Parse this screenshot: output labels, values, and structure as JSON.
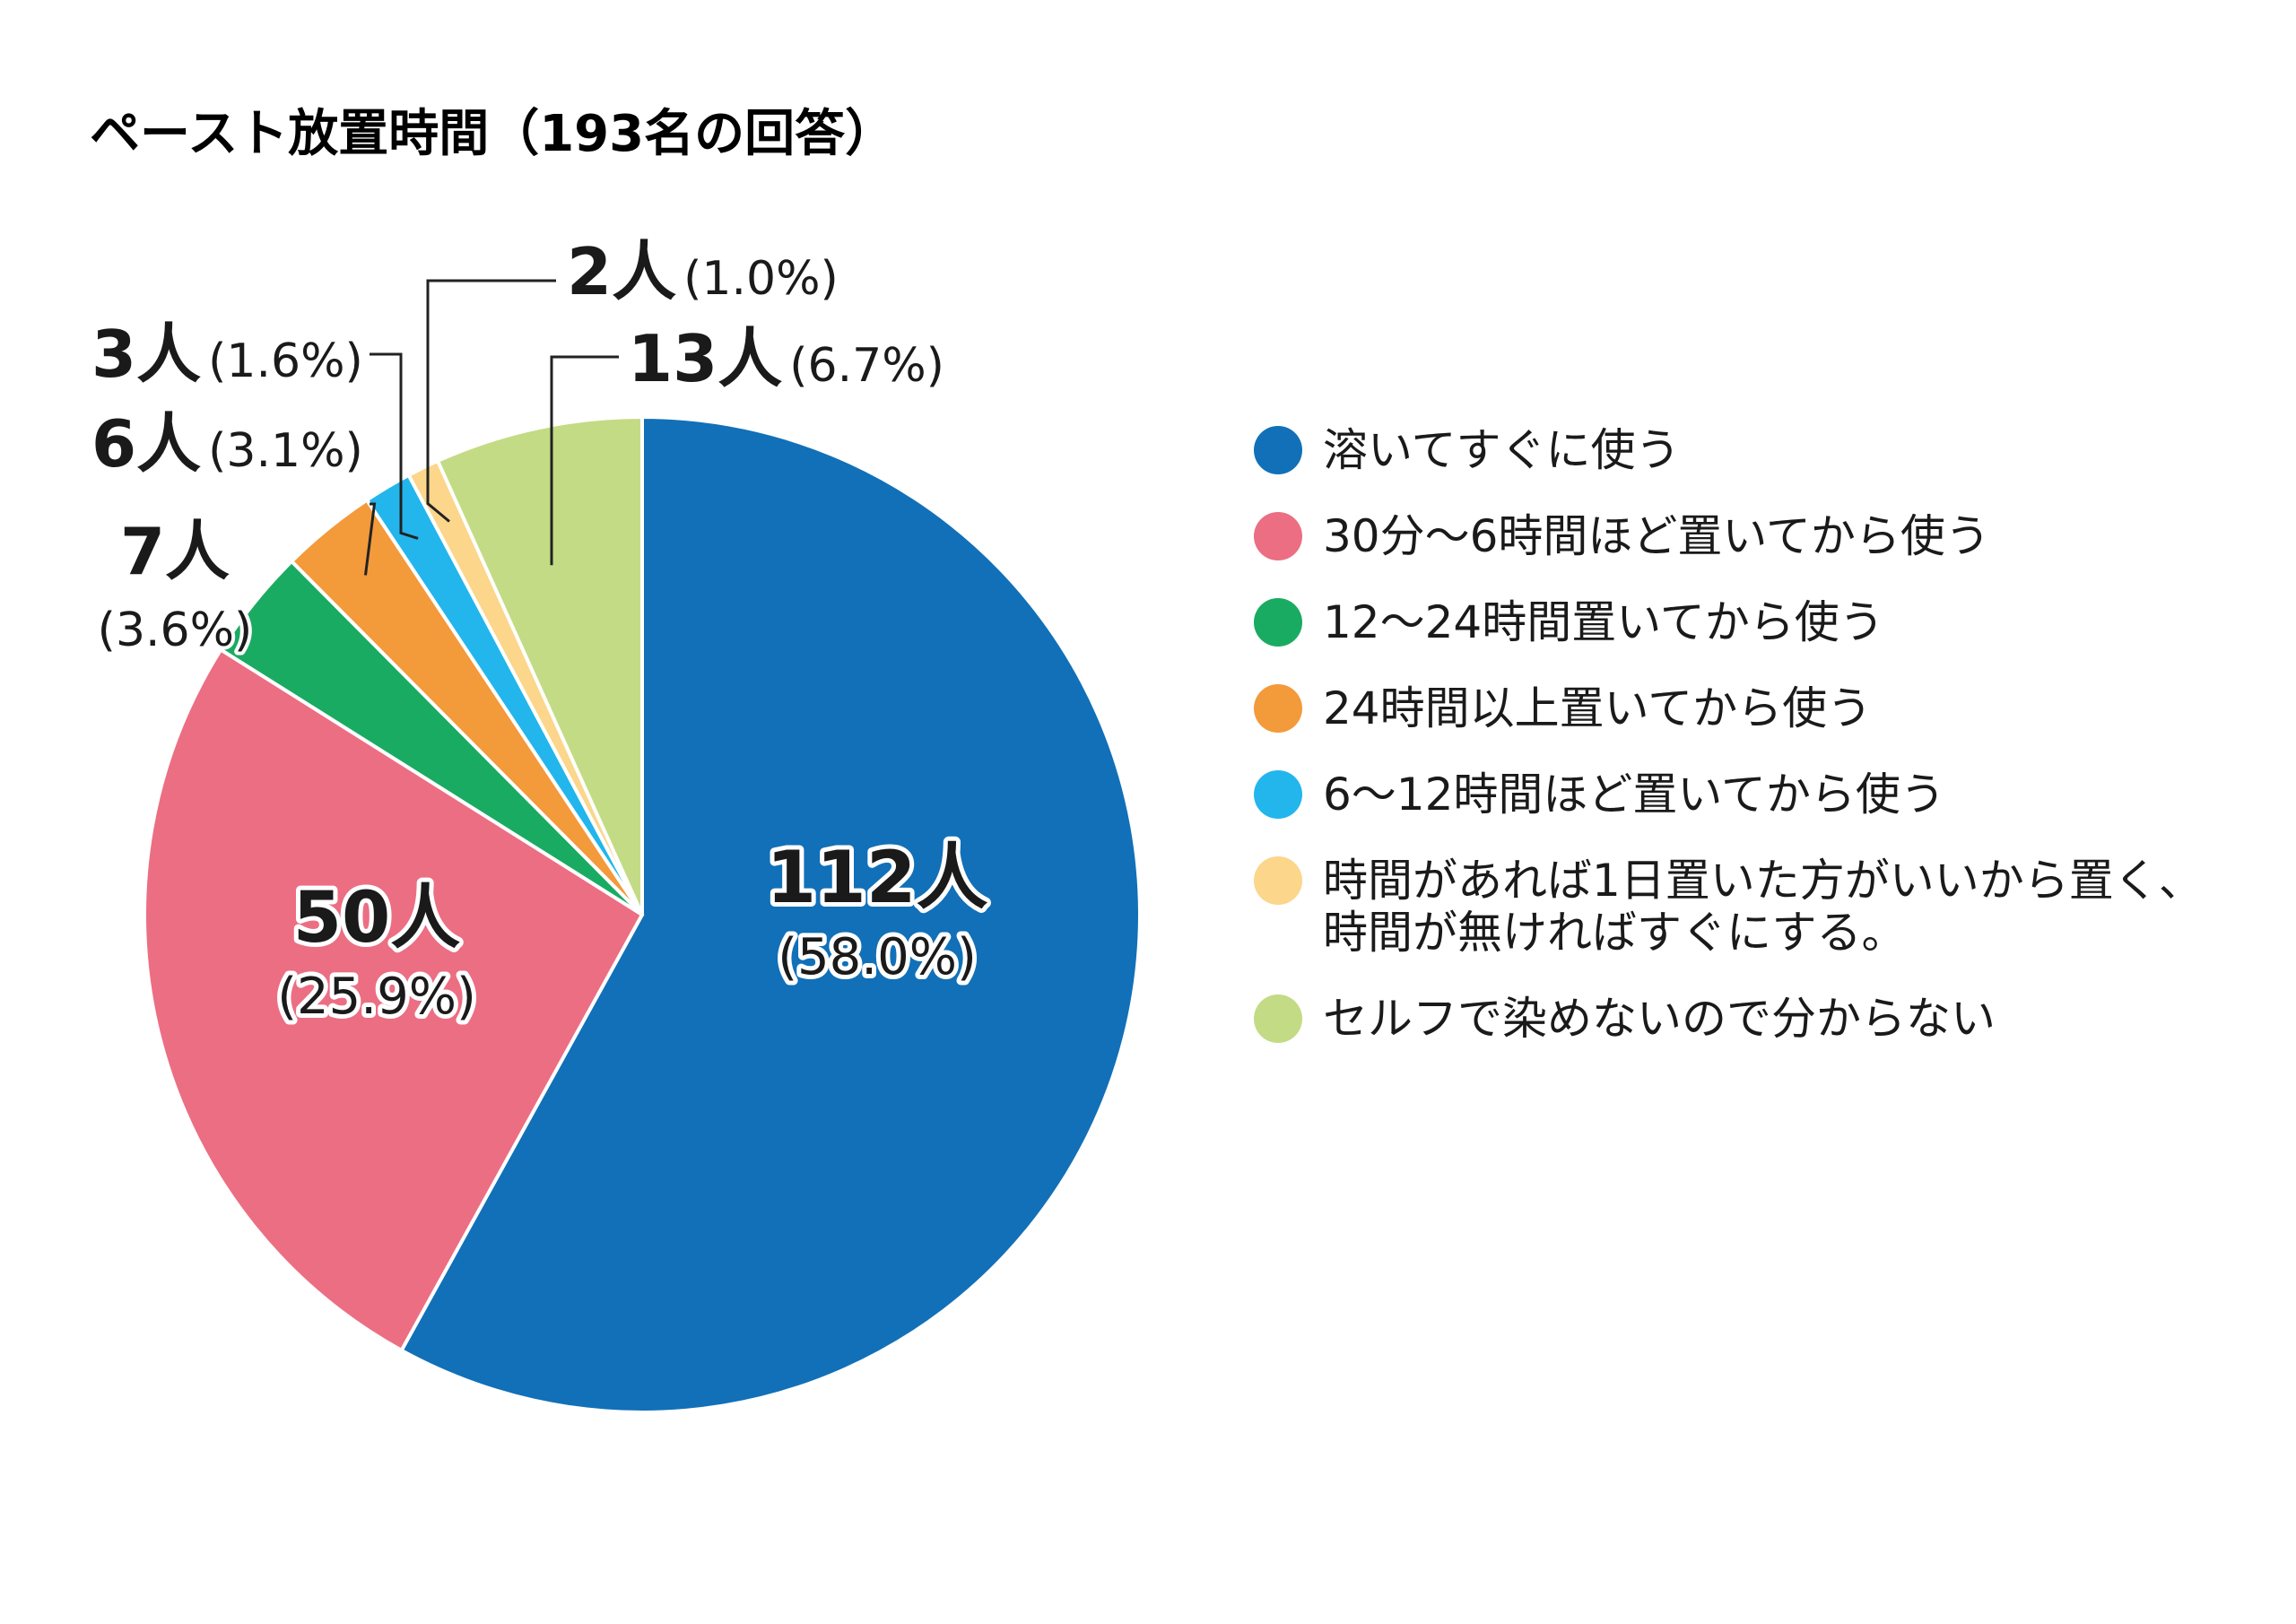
{
  "chart_data": {
    "type": "pie",
    "title": "ペースト放置時間（193名の回答）",
    "total": 193,
    "slices": [
      {
        "label": "溶いてすぐに使う",
        "value": 112,
        "count_label": "112人",
        "pct_label": "(58.0%)",
        "color": "#1170b8"
      },
      {
        "label": "30分〜6時間ほど置いてから使う",
        "value": 50,
        "count_label": "50人",
        "pct_label": "(25.9%)",
        "color": "#ec6e83"
      },
      {
        "label": "12〜24時間置いてから使う",
        "value": 7,
        "count_label": "7人",
        "pct_label": "(3.6%)",
        "color": "#1aab62"
      },
      {
        "label": "24時間以上置いてから使う",
        "value": 6,
        "count_label": "6人",
        "pct_label": "(3.1%)",
        "color": "#f39a3b"
      },
      {
        "label": "6〜12時間ほど置いてから使う",
        "value": 3,
        "count_label": "3人",
        "pct_label": "(1.6%)",
        "color": "#22b6ec"
      },
      {
        "label": "時間があれば1日置いた方がいいから置く、時間が無ければすぐにする。",
        "value": 2,
        "count_label": "2人",
        "pct_label": "(1.0%)",
        "color": "#fbd68b"
      },
      {
        "label": "セルフで染めないので分からない",
        "value": 13,
        "count_label": "13人",
        "pct_label": "(6.7%)",
        "color": "#c3db84"
      }
    ],
    "legend": {
      "position": "right",
      "items": [
        {
          "lines": [
            "溶いてすぐに使う"
          ],
          "color": "#1170b8"
        },
        {
          "lines": [
            "30分〜6時間ほど置いてから使う"
          ],
          "color": "#ec6e83"
        },
        {
          "lines": [
            "12〜24時間置いてから使う"
          ],
          "color": "#1aab62"
        },
        {
          "lines": [
            "24時間以上置いてから使う"
          ],
          "color": "#f39a3b"
        },
        {
          "lines": [
            "6〜12時間ほど置いてから使う"
          ],
          "color": "#22b6ec"
        },
        {
          "lines": [
            "時間があれば1日置いた方がいいから置く、",
            "時間が無ければすぐにする。"
          ],
          "color": "#fbd68b"
        },
        {
          "lines": [
            "セルフで染めないので分からない"
          ],
          "color": "#c3db84"
        }
      ]
    }
  }
}
